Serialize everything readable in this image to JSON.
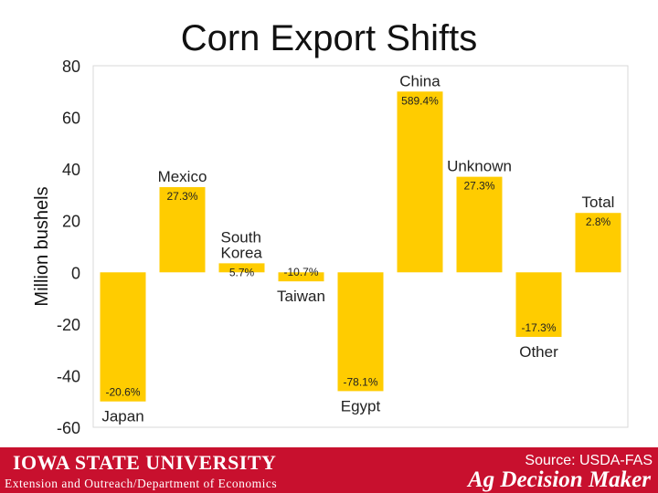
{
  "chart_data": {
    "type": "bar",
    "title": "Corn Export Shifts",
    "ylabel": "Million bushels",
    "ylim": [
      -60,
      80
    ],
    "yticks": [
      80,
      60,
      40,
      20,
      0,
      -20,
      -40,
      -60
    ],
    "grid": false,
    "bar_color": "#ffcc00",
    "categories": [
      "Japan",
      "Mexico",
      "South Korea",
      "Taiwan",
      "Egypt",
      "China",
      "Unknown",
      "Other",
      "Total"
    ],
    "category_label_lines": [
      [
        "Japan"
      ],
      [
        "Mexico"
      ],
      [
        "South",
        "Korea"
      ],
      [
        "Taiwan"
      ],
      [
        "Egypt"
      ],
      [
        "China"
      ],
      [
        "Unknown"
      ],
      [
        "Other"
      ],
      [
        "Total"
      ]
    ],
    "values": [
      -50,
      33,
      3.5,
      -3.5,
      -46,
      70,
      37,
      -25,
      23
    ],
    "pct_labels": [
      "-20.6%",
      "27.3%",
      "5.7%",
      "-10.7%",
      "-78.1%",
      "589.4%",
      "27.3%",
      "-17.3%",
      "2.8%"
    ]
  },
  "footer": {
    "university": "IOWA STATE UNIVERSITY",
    "department": "Extension and Outreach/Department of Economics",
    "source": "Source: USDA-FAS",
    "brand": "Ag Decision Maker",
    "color": "#c8102e"
  }
}
